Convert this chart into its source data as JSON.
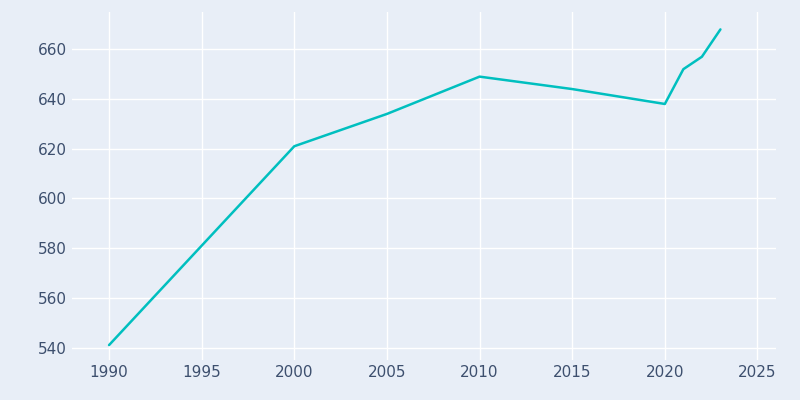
{
  "years": [
    1990,
    2000,
    2005,
    2010,
    2015,
    2020,
    2021,
    2022,
    2023
  ],
  "population": [
    541,
    621,
    634,
    649,
    644,
    638,
    652,
    657,
    668
  ],
  "line_color": "#00BFBF",
  "bg_color": "#e8eef7",
  "grid_color": "#ffffff",
  "tick_color": "#3d4f6e",
  "xlim": [
    1988,
    2026
  ],
  "ylim": [
    535,
    675
  ],
  "yticks": [
    540,
    560,
    580,
    600,
    620,
    640,
    660
  ],
  "xticks": [
    1990,
    1995,
    2000,
    2005,
    2010,
    2015,
    2020,
    2025
  ],
  "line_width": 1.8,
  "tick_fontsize": 11
}
